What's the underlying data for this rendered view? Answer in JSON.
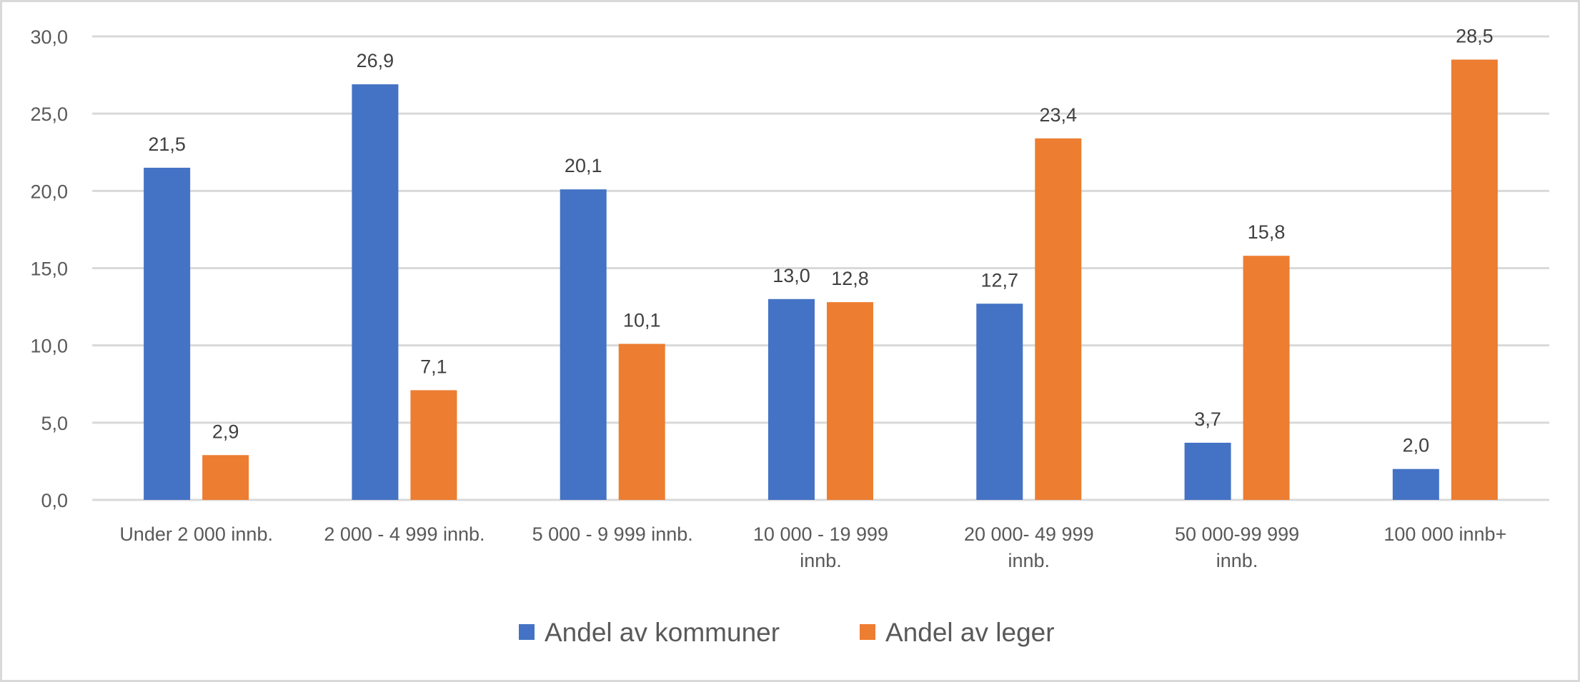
{
  "chart_data": {
    "type": "bar",
    "title": "",
    "xlabel": "",
    "ylabel": "",
    "ylim": [
      0,
      30
    ],
    "yticks": [
      "0,0",
      "5,0",
      "10,0",
      "15,0",
      "20,0",
      "25,0",
      "30,0"
    ],
    "ytick_values": [
      0,
      5,
      10,
      15,
      20,
      25,
      30
    ],
    "grid": true,
    "legend_position": "bottom",
    "categories": [
      [
        "Under 2 000 innb."
      ],
      [
        "2 000 - 4 999 innb."
      ],
      [
        "5 000 - 9 999 innb."
      ],
      [
        "10 000 - 19 999",
        "innb."
      ],
      [
        "20 000- 49 999",
        "innb."
      ],
      [
        "50 000-99 999",
        "innb."
      ],
      [
        "100 000 innb+"
      ]
    ],
    "series": [
      {
        "name": "Andel av kommuner",
        "color": "#4472C4",
        "values": [
          21.5,
          26.9,
          20.1,
          13.0,
          12.7,
          3.7,
          2.0
        ],
        "labels": [
          "21,5",
          "26,9",
          "20,1",
          "13,0",
          "12,7",
          "3,7",
          "2,0"
        ]
      },
      {
        "name": "Andel av leger",
        "color": "#ED7D31",
        "values": [
          2.9,
          7.1,
          10.1,
          12.8,
          23.4,
          15.8,
          28.5
        ],
        "labels": [
          "2,9",
          "7,1",
          "10,1",
          "12,8",
          "23,4",
          "15,8",
          "28,5"
        ]
      }
    ]
  }
}
